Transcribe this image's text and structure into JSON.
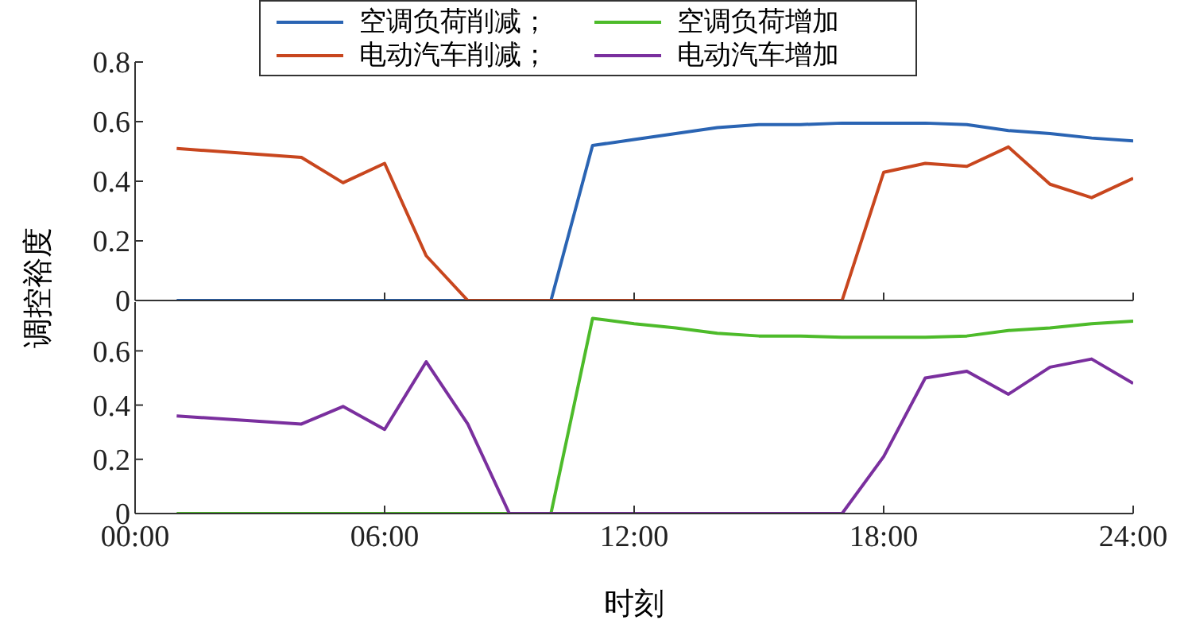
{
  "chart_data": [
    {
      "type": "line",
      "ylabel": "调控裕度",
      "xlim": [
        0,
        24
      ],
      "xticks": [
        0,
        6,
        12,
        18,
        24
      ],
      "ylim": [
        0,
        0.8
      ],
      "yticks": [
        0,
        0.2,
        0.4,
        0.6,
        0.8
      ],
      "tick_labels": "y",
      "legend": "top",
      "grid": false,
      "marker": "none",
      "line_style": "solid",
      "series": [
        {
          "name": "空调负荷削减；",
          "color": "#2a64b3",
          "x": [
            1,
            4,
            5,
            6,
            7,
            8,
            9,
            10,
            11,
            12,
            13,
            14,
            15,
            16,
            17,
            18,
            19,
            20,
            21,
            22,
            23,
            24
          ],
          "values": [
            0,
            0,
            0,
            0,
            0,
            0,
            0,
            0,
            0.52,
            0.54,
            0.56,
            0.58,
            0.59,
            0.59,
            0.595,
            0.595,
            0.595,
            0.59,
            0.57,
            0.56,
            0.545,
            0.535
          ]
        },
        {
          "name": "电动汽车削减；",
          "color": "#c8461e",
          "x": [
            1,
            4,
            5,
            6,
            7,
            8,
            9,
            10,
            11,
            12,
            13,
            14,
            15,
            16,
            17,
            18,
            19,
            20,
            21,
            22,
            23,
            24
          ],
          "values": [
            0.51,
            0.48,
            0.395,
            0.46,
            0.15,
            0,
            0,
            0,
            0,
            0,
            0,
            0,
            0,
            0,
            0,
            0.43,
            0.46,
            0.45,
            0.515,
            0.39,
            0.345,
            0.41
          ]
        }
      ]
    },
    {
      "type": "line",
      "xlabel": "时刻",
      "xlim": [
        0,
        24
      ],
      "xticks": [
        {
          "value": 0,
          "label": "00:00"
        },
        {
          "value": 6,
          "label": "06:00"
        },
        {
          "value": 12,
          "label": "12:00"
        },
        {
          "value": 18,
          "label": "18:00"
        },
        {
          "value": 24,
          "label": "24:00"
        }
      ],
      "ylim": [
        0,
        0.78
      ],
      "yticks": [
        0,
        0.2,
        0.4,
        0.6
      ],
      "legend": "top",
      "grid": false,
      "marker": "none",
      "line_style": "solid",
      "series": [
        {
          "name": "空调负荷增加",
          "color": "#4dbb2a",
          "x": [
            1,
            4,
            5,
            6,
            7,
            8,
            9,
            10,
            11,
            12,
            13,
            14,
            15,
            16,
            17,
            18,
            19,
            20,
            21,
            22,
            23,
            24
          ],
          "values": [
            0,
            0,
            0,
            0,
            0,
            0,
            0,
            0,
            0.72,
            0.7,
            0.685,
            0.665,
            0.655,
            0.655,
            0.65,
            0.65,
            0.65,
            0.655,
            0.675,
            0.685,
            0.7,
            0.71
          ]
        },
        {
          "name": "电动汽车增加",
          "color": "#7a2f9e",
          "x": [
            1,
            4,
            5,
            6,
            7,
            8,
            9,
            10,
            11,
            12,
            13,
            14,
            15,
            16,
            17,
            18,
            19,
            20,
            21,
            22,
            23,
            24
          ],
          "values": [
            0.36,
            0.33,
            0.395,
            0.31,
            0.56,
            0.33,
            0,
            0,
            0,
            0,
            0,
            0,
            0,
            0,
            0,
            0.21,
            0.5,
            0.525,
            0.44,
            0.54,
            0.57,
            0.48
          ]
        }
      ]
    }
  ]
}
